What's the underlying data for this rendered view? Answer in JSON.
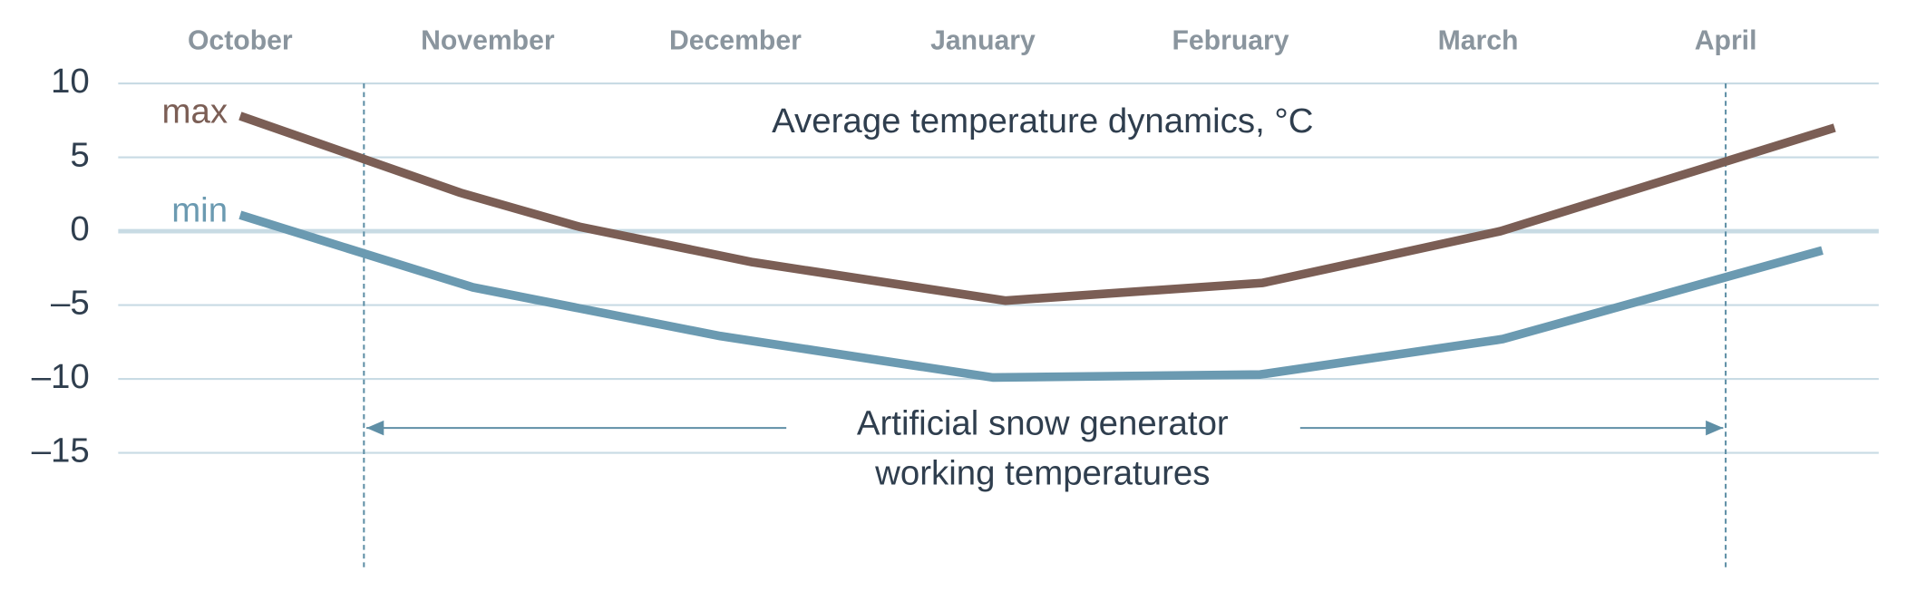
{
  "chart_data": {
    "type": "line",
    "title": "Average temperature dynamics, °C",
    "xlim": [
      -0.5,
      6.6
    ],
    "xticks": [
      {
        "value": 0,
        "label": "October"
      },
      {
        "value": 1,
        "label": "November"
      },
      {
        "value": 2,
        "label": "December"
      },
      {
        "value": 3,
        "label": "January"
      },
      {
        "value": 4,
        "label": "February"
      },
      {
        "value": 5,
        "label": "March"
      },
      {
        "value": 6,
        "label": "April"
      }
    ],
    "ylim": [
      -15,
      10
    ],
    "yticks": [
      {
        "value": 10,
        "label": "10"
      },
      {
        "value": 5,
        "label": "5"
      },
      {
        "value": 0,
        "label": "0"
      },
      {
        "value": -5,
        "label": "–5"
      },
      {
        "value": -10,
        "label": "–10"
      },
      {
        "value": -15,
        "label": "–15"
      }
    ],
    "grid": true,
    "series": [
      {
        "name": "max",
        "color": "#7b5e55",
        "x": [
          0,
          0.89,
          1.37,
          2.07,
          3.09,
          4.13,
          5.09,
          6.44
        ],
        "values": [
          7.8,
          2.6,
          0.3,
          -2.1,
          -4.7,
          -3.5,
          0,
          7.0
        ]
      },
      {
        "name": "min",
        "color": "#6b9ab1",
        "x": [
          0,
          0.94,
          1.94,
          3.04,
          4.12,
          5.1,
          6.39
        ],
        "values": [
          1.1,
          -3.8,
          -7.1,
          -9.9,
          -9.7,
          -7.3,
          -1.3
        ]
      }
    ],
    "annotation": {
      "text": [
        "Artificial snow generator",
        "working temperatures"
      ],
      "range": [
        0.5,
        6
      ]
    }
  }
}
